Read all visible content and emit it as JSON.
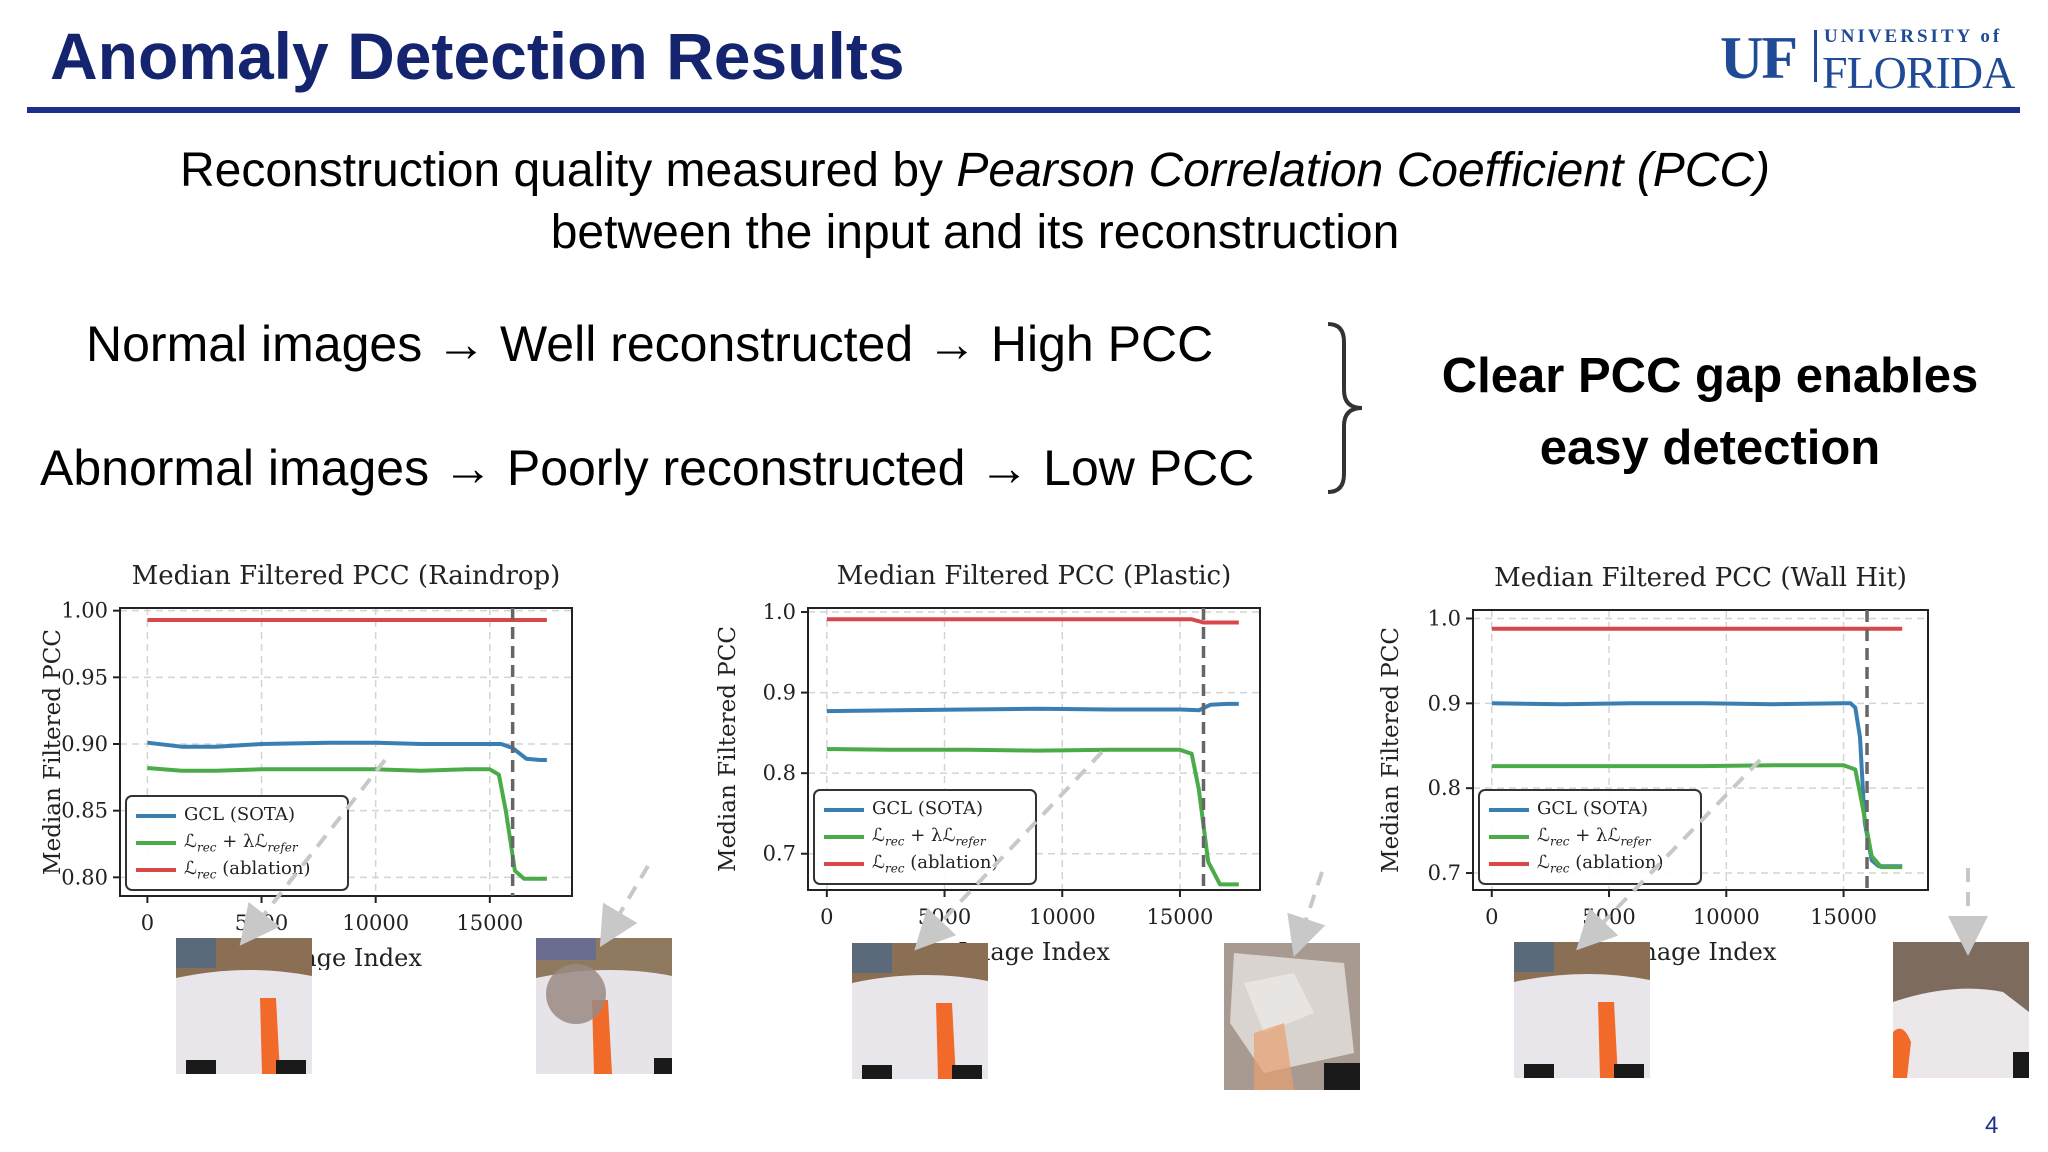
{
  "slide": {
    "title": "Anomaly Detection Results",
    "page_number": "4",
    "logo": {
      "uf": "UF",
      "university_of": "UNIVERSITY of",
      "florida": "FLORIDA"
    },
    "subtitle": {
      "line1_prefix": "Reconstruction quality measured by ",
      "line1_italic": "Pearson Correlation Coefficient (PCC)",
      "line2": "between the input and its reconstruction"
    },
    "normal_row": "Normal images → Well reconstructed → High PCC",
    "abnormal_row": "Abnormal images → Poorly reconstructed → Low PCC",
    "gap_line1": "Clear PCC gap enables",
    "gap_line2": "easy detection",
    "colors": {
      "title": "#14246e",
      "rule": "#1c2f8a",
      "gcl": "#3a7fb4",
      "refer": "#4aac48",
      "ablation": "#d8474a",
      "logo": "#1f4a96"
    }
  },
  "chart_data": [
    {
      "type": "line",
      "title": "Median Filtered PCC (Raindrop)",
      "xlabel": "Image Index",
      "ylabel": "Median Filtered PCC",
      "xlim": [
        -1200,
        18600
      ],
      "ylim": [
        0.786,
        1.002
      ],
      "xticks": [
        0,
        5000,
        10000,
        15000
      ],
      "xtick_labels": [
        "0",
        "5000",
        "10000",
        "15000"
      ],
      "yticks": [
        0.8,
        0.85,
        0.9,
        0.95,
        1.0
      ],
      "ytick_labels": [
        "0.80",
        "0.85",
        "0.90",
        "0.95",
        "1.00"
      ],
      "grid": true,
      "vline_x": 16000,
      "legend": {
        "position": "lower-left",
        "entries": [
          {
            "label": "GCL (SOTA)",
            "series": 0
          },
          {
            "label_html": "ℒ<sub>rec</sub> + λℒ<sub>refer</sub>",
            "series": 1
          },
          {
            "label_html": "ℒ<sub>rec</sub> (ablation)",
            "series": 2
          }
        ]
      },
      "series": [
        {
          "name": "GCL (SOTA)",
          "color": "#3a7fb4",
          "x": [
            0,
            1500,
            3000,
            5000,
            8000,
            10000,
            12000,
            14000,
            15500,
            16000,
            16600,
            17200,
            17500
          ],
          "y": [
            0.901,
            0.898,
            0.898,
            0.9,
            0.901,
            0.901,
            0.9,
            0.9,
            0.9,
            0.897,
            0.889,
            0.888,
            0.888
          ]
        },
        {
          "name": "ℒrec + λℒrefer",
          "color": "#4aac48",
          "x": [
            0,
            1500,
            3000,
            5000,
            8000,
            10000,
            12000,
            14000,
            15000,
            15400,
            15700,
            16100,
            16500,
            17000,
            17500
          ],
          "y": [
            0.882,
            0.88,
            0.88,
            0.881,
            0.881,
            0.881,
            0.88,
            0.881,
            0.881,
            0.877,
            0.85,
            0.805,
            0.799,
            0.799,
            0.799
          ]
        },
        {
          "name": "ℒrec (ablation)",
          "color": "#d8474a",
          "x": [
            0,
            17500
          ],
          "y": [
            0.993,
            0.993
          ]
        }
      ]
    },
    {
      "type": "line",
      "title": "Median Filtered PCC (Plastic)",
      "xlabel": "Image Index",
      "ylabel": "Median Filtered PCC",
      "xlim": [
        -800,
        18400
      ],
      "ylim": [
        0.655,
        1.005
      ],
      "xticks": [
        0,
        5000,
        10000,
        15000
      ],
      "xtick_labels": [
        "0",
        "5000",
        "10000",
        "15000"
      ],
      "yticks": [
        0.7,
        0.8,
        0.9,
        1.0
      ],
      "ytick_labels": [
        "0.7",
        "0.8",
        "0.9",
        "1.0"
      ],
      "grid": true,
      "vline_x": 16000,
      "legend": {
        "position": "lower-left",
        "entries": [
          {
            "label": "GCL (SOTA)",
            "series": 0
          },
          {
            "label_html": "ℒ<sub>rec</sub> + λℒ<sub>refer</sub>",
            "series": 1
          },
          {
            "label_html": "ℒ<sub>rec</sub> (ablation)",
            "series": 2
          }
        ]
      },
      "series": [
        {
          "name": "GCL (SOTA)",
          "color": "#3a7fb4",
          "x": [
            0,
            3000,
            6000,
            9000,
            12000,
            15000,
            15800,
            16300,
            17000,
            17500
          ],
          "y": [
            0.877,
            0.878,
            0.879,
            0.88,
            0.879,
            0.879,
            0.878,
            0.885,
            0.886,
            0.886
          ]
        },
        {
          "name": "ℒrec + λℒrefer",
          "color": "#4aac48",
          "x": [
            0,
            3000,
            6000,
            9000,
            12000,
            15000,
            15500,
            15800,
            16200,
            16700,
            17500
          ],
          "y": [
            0.83,
            0.829,
            0.829,
            0.828,
            0.829,
            0.829,
            0.824,
            0.78,
            0.69,
            0.662,
            0.662
          ]
        },
        {
          "name": "ℒrec (ablation)",
          "color": "#d8474a",
          "x": [
            0,
            15500,
            16000,
            17500
          ],
          "y": [
            0.991,
            0.991,
            0.987,
            0.987
          ]
        }
      ]
    },
    {
      "type": "line",
      "title": "Median Filtered PCC (Wall Hit)",
      "xlabel": "Image Index",
      "ylabel": "Median Filtered PCC",
      "xlim": [
        -800,
        18600
      ],
      "ylim": [
        0.68,
        1.01
      ],
      "xticks": [
        0,
        5000,
        10000,
        15000
      ],
      "xtick_labels": [
        "0",
        "5000",
        "10000",
        "15000"
      ],
      "yticks": [
        0.7,
        0.8,
        0.9,
        1.0
      ],
      "ytick_labels": [
        "0.7",
        "0.8",
        "0.9",
        "1.0"
      ],
      "grid": true,
      "vline_x": 16000,
      "legend": {
        "position": "lower-left",
        "entries": [
          {
            "label": "GCL (SOTA)",
            "series": 0
          },
          {
            "label_html": "ℒ<sub>rec</sub> + λℒ<sub>refer</sub>",
            "series": 1
          },
          {
            "label_html": "ℒ<sub>rec</sub> (ablation)",
            "series": 2
          }
        ]
      },
      "series": [
        {
          "name": "GCL (SOTA)",
          "color": "#3a7fb4",
          "x": [
            0,
            3000,
            6000,
            9000,
            12000,
            15000,
            15300,
            15500,
            15700,
            15900,
            16200,
            16500,
            17500
          ],
          "y": [
            0.9,
            0.899,
            0.9,
            0.9,
            0.899,
            0.9,
            0.9,
            0.895,
            0.86,
            0.76,
            0.715,
            0.708,
            0.708
          ]
        },
        {
          "name": "ℒrec + λℒrefer",
          "color": "#4aac48",
          "x": [
            0,
            3000,
            6000,
            9000,
            12000,
            15000,
            15500,
            15800,
            16200,
            16600,
            17500
          ],
          "y": [
            0.826,
            0.826,
            0.826,
            0.826,
            0.827,
            0.827,
            0.822,
            0.78,
            0.72,
            0.707,
            0.707
          ]
        },
        {
          "name": "ℒrec (ablation)",
          "color": "#d8474a",
          "x": [
            0,
            17500
          ],
          "y": [
            0.988,
            0.988
          ]
        }
      ]
    }
  ],
  "thumbnails": [
    {
      "kind": "normal",
      "icon": "camera-frame-normal"
    },
    {
      "kind": "raindrop",
      "icon": "camera-frame-raindrop"
    },
    {
      "kind": "normal",
      "icon": "camera-frame-normal"
    },
    {
      "kind": "plastic",
      "icon": "camera-frame-plastic"
    },
    {
      "kind": "normal",
      "icon": "camera-frame-normal"
    },
    {
      "kind": "wallhit",
      "icon": "camera-frame-wallhit"
    }
  ]
}
